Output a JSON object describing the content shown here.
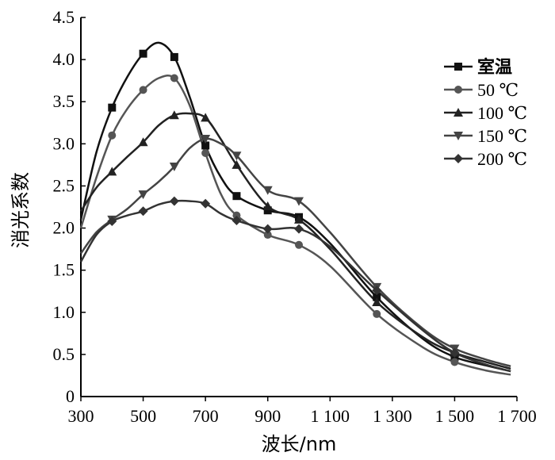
{
  "chart_data": {
    "type": "line",
    "title": "",
    "xlabel": "波长/nm",
    "ylabel": "消光系数",
    "xlim": [
      300,
      1700
    ],
    "ylim": [
      0,
      4.5
    ],
    "xticks": [
      300,
      500,
      700,
      900,
      1100,
      1300,
      1500,
      1700
    ],
    "xtick_labels": [
      "300",
      "500",
      "700",
      "900",
      "1 100",
      "1 300",
      "1 500",
      "1 700"
    ],
    "yticks": [
      0,
      0.5,
      1.0,
      1.5,
      2.0,
      2.5,
      3.0,
      3.5,
      4.0,
      4.5
    ],
    "ytick_labels": [
      "0",
      "0.5",
      "1.0",
      "1.5",
      "2.0",
      "2.5",
      "3.0",
      "3.5",
      "4.0",
      "4.5"
    ],
    "grid": false,
    "legend_position": "top-right",
    "series": [
      {
        "name": "室温",
        "marker": "square",
        "color": "#111111",
        "markers": [
          [
            400,
            3.43
          ],
          [
            500,
            4.07
          ],
          [
            600,
            4.03
          ],
          [
            700,
            2.98
          ],
          [
            800,
            2.38
          ],
          [
            900,
            2.21
          ],
          [
            1000,
            2.13
          ],
          [
            1250,
            1.18
          ],
          [
            1500,
            0.47
          ]
        ],
        "curve": [
          [
            300,
            2.1
          ],
          [
            350,
            2.9
          ],
          [
            400,
            3.43
          ],
          [
            450,
            3.8
          ],
          [
            500,
            4.07
          ],
          [
            550,
            4.2
          ],
          [
            600,
            4.03
          ],
          [
            650,
            3.55
          ],
          [
            700,
            2.98
          ],
          [
            750,
            2.6
          ],
          [
            800,
            2.38
          ],
          [
            900,
            2.21
          ],
          [
            1000,
            2.13
          ],
          [
            1100,
            1.82
          ],
          [
            1250,
            1.18
          ],
          [
            1400,
            0.68
          ],
          [
            1500,
            0.47
          ],
          [
            1600,
            0.37
          ],
          [
            1680,
            0.3
          ]
        ]
      },
      {
        "name": "50 ℃",
        "marker": "circle",
        "color": "#555555",
        "markers": [
          [
            400,
            3.1
          ],
          [
            500,
            3.64
          ],
          [
            600,
            3.78
          ],
          [
            700,
            2.89
          ],
          [
            800,
            2.15
          ],
          [
            900,
            1.92
          ],
          [
            1000,
            1.8
          ],
          [
            1250,
            0.98
          ],
          [
            1500,
            0.41
          ]
        ],
        "curve": [
          [
            300,
            2.0
          ],
          [
            350,
            2.6
          ],
          [
            400,
            3.1
          ],
          [
            450,
            3.42
          ],
          [
            500,
            3.64
          ],
          [
            550,
            3.78
          ],
          [
            600,
            3.78
          ],
          [
            650,
            3.45
          ],
          [
            700,
            2.89
          ],
          [
            750,
            2.4
          ],
          [
            800,
            2.15
          ],
          [
            900,
            1.92
          ],
          [
            1000,
            1.8
          ],
          [
            1100,
            1.55
          ],
          [
            1250,
            0.98
          ],
          [
            1400,
            0.58
          ],
          [
            1500,
            0.41
          ],
          [
            1600,
            0.31
          ],
          [
            1680,
            0.26
          ]
        ]
      },
      {
        "name": "100 ℃",
        "marker": "triangle-up",
        "color": "#222222",
        "markers": [
          [
            400,
            2.67
          ],
          [
            500,
            3.02
          ],
          [
            600,
            3.34
          ],
          [
            700,
            3.31
          ],
          [
            800,
            2.75
          ],
          [
            900,
            2.26
          ],
          [
            1000,
            2.1
          ],
          [
            1250,
            1.12
          ],
          [
            1500,
            0.52
          ]
        ],
        "curve": [
          [
            300,
            2.2
          ],
          [
            350,
            2.48
          ],
          [
            400,
            2.67
          ],
          [
            450,
            2.85
          ],
          [
            500,
            3.02
          ],
          [
            550,
            3.22
          ],
          [
            600,
            3.34
          ],
          [
            650,
            3.36
          ],
          [
            700,
            3.31
          ],
          [
            750,
            3.05
          ],
          [
            800,
            2.75
          ],
          [
            900,
            2.26
          ],
          [
            1000,
            2.1
          ],
          [
            1100,
            1.75
          ],
          [
            1250,
            1.12
          ],
          [
            1400,
            0.7
          ],
          [
            1500,
            0.52
          ],
          [
            1600,
            0.41
          ],
          [
            1680,
            0.33
          ]
        ]
      },
      {
        "name": "150 ℃",
        "marker": "triangle-down",
        "color": "#444444",
        "markers": [
          [
            400,
            2.1
          ],
          [
            500,
            2.4
          ],
          [
            600,
            2.73
          ],
          [
            700,
            3.06
          ],
          [
            800,
            2.86
          ],
          [
            900,
            2.45
          ],
          [
            1000,
            2.32
          ],
          [
            1250,
            1.3
          ],
          [
            1500,
            0.57
          ]
        ],
        "curve": [
          [
            300,
            1.7
          ],
          [
            350,
            1.95
          ],
          [
            400,
            2.1
          ],
          [
            450,
            2.23
          ],
          [
            500,
            2.4
          ],
          [
            550,
            2.55
          ],
          [
            600,
            2.73
          ],
          [
            650,
            2.95
          ],
          [
            700,
            3.06
          ],
          [
            750,
            3.0
          ],
          [
            800,
            2.86
          ],
          [
            900,
            2.45
          ],
          [
            1000,
            2.32
          ],
          [
            1100,
            1.95
          ],
          [
            1250,
            1.3
          ],
          [
            1400,
            0.8
          ],
          [
            1500,
            0.57
          ],
          [
            1600,
            0.44
          ],
          [
            1680,
            0.36
          ]
        ]
      },
      {
        "name": "200 ℃",
        "marker": "diamond",
        "color": "#333333",
        "markers": [
          [
            400,
            2.08
          ],
          [
            500,
            2.2
          ],
          [
            600,
            2.32
          ],
          [
            700,
            2.29
          ],
          [
            800,
            2.09
          ],
          [
            900,
            1.99
          ],
          [
            1000,
            1.99
          ],
          [
            1250,
            1.26
          ],
          [
            1500,
            0.52
          ]
        ],
        "curve": [
          [
            300,
            1.6
          ],
          [
            350,
            1.92
          ],
          [
            400,
            2.08
          ],
          [
            450,
            2.15
          ],
          [
            500,
            2.2
          ],
          [
            550,
            2.28
          ],
          [
            600,
            2.32
          ],
          [
            650,
            2.32
          ],
          [
            700,
            2.29
          ],
          [
            750,
            2.17
          ],
          [
            800,
            2.09
          ],
          [
            900,
            1.99
          ],
          [
            1000,
            1.99
          ],
          [
            1100,
            1.78
          ],
          [
            1250,
            1.26
          ],
          [
            1400,
            0.78
          ],
          [
            1500,
            0.52
          ],
          [
            1600,
            0.38
          ],
          [
            1680,
            0.3
          ]
        ]
      }
    ]
  }
}
